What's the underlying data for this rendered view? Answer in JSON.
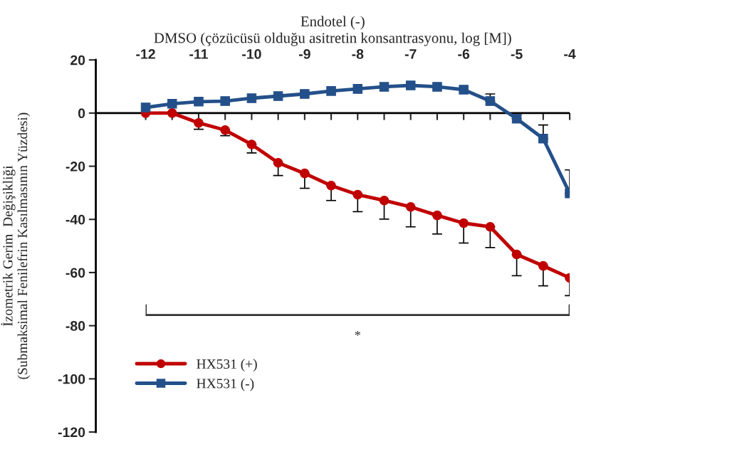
{
  "chart_data": {
    "type": "line",
    "title": "Endotel (-)",
    "xlabel": "DMSO (çözücüsü olduğu asitretin konsantrasyonu, log [M])",
    "ylabel": "İzometrik Gerim  Değişikliği\n(Submaksimal Fenilefrin Kasılmasının Yüzdesi)",
    "x": [
      -12,
      -11.5,
      -11,
      -10.5,
      -10,
      -9.5,
      -9,
      -8.5,
      -8,
      -7.5,
      -7,
      -6.5,
      -6,
      -5.5,
      -5,
      -4.5,
      -4
    ],
    "series": [
      {
        "name": "HX531 (+)",
        "color": "#c00000",
        "marker": "circle",
        "values": [
          0,
          0,
          -3.7,
          -6.4,
          -11.8,
          -18.7,
          -22.7,
          -27.3,
          -30.7,
          -32.9,
          -35.3,
          -38.5,
          -41.4,
          -42.8,
          -53.2,
          -57.5,
          -62
        ],
        "errors": [
          null,
          null,
          [
            -6.1,
            -3.7
          ],
          [
            -8.5,
            -6.4
          ],
          [
            -15.0,
            -11.8
          ],
          [
            -23.5,
            -18.7
          ],
          [
            -28.3,
            -22.7
          ],
          [
            -32.9,
            -27.3
          ],
          [
            -37.1,
            -30.7
          ],
          [
            -39.9,
            -32.9
          ],
          [
            -42.8,
            -35.3
          ],
          [
            -45.5,
            -38.5
          ],
          [
            -48.9,
            -41.4
          ],
          [
            -50.6,
            -42.8
          ],
          [
            -61.2,
            -53.2
          ],
          [
            -65.0,
            -57.5
          ],
          [
            -68.7,
            -62
          ]
        ]
      },
      {
        "name": "HX531 (-)",
        "color": "#24508a",
        "marker": "square",
        "values": [
          2.1,
          3.5,
          4.3,
          4.5,
          5.6,
          6.4,
          7.2,
          8.3,
          9.1,
          9.9,
          10.4,
          9.9,
          8.8,
          4.5,
          -2.1,
          -9.6,
          -30.2
        ],
        "errors": [
          null,
          null,
          null,
          null,
          null,
          null,
          null,
          null,
          null,
          null,
          null,
          null,
          null,
          [
            4.5,
            7.2
          ],
          [
            -2.1,
            -0.5
          ],
          [
            -9.6,
            -4.5
          ],
          [
            -30.2,
            -21.4
          ]
        ]
      }
    ],
    "xlim": [
      -12.94,
      -4
    ],
    "xticks": [
      -12,
      {
        "value": -11.5,
        "label": null
      },
      -11,
      {
        "value": -10.5,
        "label": null
      },
      -10,
      {
        "value": -9.5,
        "label": null
      },
      -9,
      {
        "value": -8.5,
        "label": null
      },
      -8,
      {
        "value": -7.5,
        "label": null
      },
      -7,
      {
        "value": -6.5,
        "label": null
      },
      -6,
      {
        "value": -5.5,
        "label": null
      },
      -5,
      {
        "value": -4.5,
        "label": null
      },
      -4
    ],
    "ylim": [
      -120,
      20
    ],
    "yticks": [
      -120,
      -100,
      -80,
      -60,
      -40,
      -20,
      0,
      20
    ],
    "annotations": [
      "*"
    ],
    "ref_lines": [
      {
        "axis": "y",
        "value": 0,
        "color": "#000000",
        "line_style": "solid"
      }
    ],
    "grid": false,
    "legend": "bottom left",
    "line_style": "solid"
  }
}
